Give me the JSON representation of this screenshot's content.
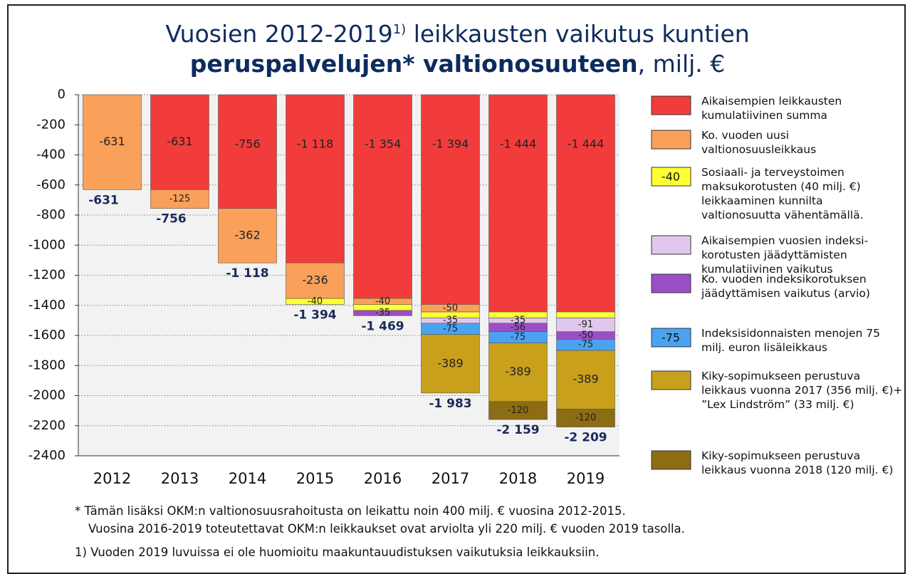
{
  "chart_data": {
    "type": "bar",
    "stacked": true,
    "title": {
      "line1": "Vuosien 2012-2019",
      "superscript": "1)",
      "line1_rest": " leikkausten vaikutus kuntien",
      "line2_bold": "peruspalvelujen* valtionosuuteen",
      "line2_rest": ", milj. €"
    },
    "categories": [
      "2012",
      "2013",
      "2014",
      "2015",
      "2016",
      "2017",
      "2018",
      "2019"
    ],
    "ylim": [
      -2400,
      0
    ],
    "yticks": [
      0,
      -200,
      -400,
      -600,
      -800,
      -1000,
      -1200,
      -1400,
      -1600,
      -1800,
      -2000,
      -2200,
      -2400
    ],
    "grid": true,
    "series": [
      {
        "name": "Aikaisempien leikkausten kumulatiivinen summa",
        "color": "#f23c3c",
        "values": [
          null,
          -631,
          -756,
          -1118,
          -1354,
          -1394,
          -1444,
          -1444
        ],
        "value_labels": [
          null,
          "-631",
          "-756",
          "-1 118",
          "-1 354",
          "-1 394",
          "-1 444",
          "-1 444"
        ]
      },
      {
        "name": "Ko. vuoden uusi valtionosuusleikkaus",
        "color": "#f9a05a",
        "values": [
          -631,
          -125,
          -362,
          -236,
          -40,
          -50,
          null,
          null
        ],
        "value_labels": [
          "-631",
          "-125",
          "-362",
          "-236",
          "-40",
          "-50",
          null,
          null
        ]
      },
      {
        "name": "Sosiaali- ja terveystoimen maksukorotusten (40 milj. €) leikkaaminen kunnilta valtionosuutta vähentämällä.",
        "legend_label": "-40",
        "color": "#ffff33",
        "values": [
          null,
          null,
          null,
          -40,
          -40,
          -40,
          -40,
          -40
        ],
        "value_labels": [
          null,
          null,
          null,
          "-40",
          null,
          null,
          null,
          null
        ]
      },
      {
        "name": "Aikaisempien vuosien indeksi-korotusten jäädyttämisten kumulatiivinen vaikutus",
        "color": "#e0c8ec",
        "values": [
          null,
          null,
          null,
          null,
          null,
          -35,
          -35,
          -91
        ],
        "value_labels": [
          null,
          null,
          null,
          null,
          null,
          "-35",
          "-35",
          "-91"
        ]
      },
      {
        "name": "Ko. vuoden indeksikorotuksen jäädyttämisen vaikutus (arvio)",
        "color": "#9a4fc7",
        "values": [
          null,
          null,
          null,
          null,
          -35,
          null,
          -56,
          -50
        ],
        "value_labels": [
          null,
          null,
          null,
          null,
          "-35",
          null,
          "-56",
          "-50"
        ]
      },
      {
        "name": "Indeksisidonnaisten menojen 75 milj. euron lisäleikkaus",
        "legend_label": "-75",
        "color": "#4aa3f0",
        "values": [
          null,
          null,
          null,
          null,
          null,
          -75,
          -75,
          -75
        ],
        "value_labels": [
          null,
          null,
          null,
          null,
          null,
          "-75",
          "-75",
          "-75"
        ]
      },
      {
        "name": "Kiky-sopimukseen perustuva leikkaus vuonna 2017 (356 milj. €)+ ”Lex Lindström” (33 milj. €)",
        "color": "#c9a01c",
        "values": [
          null,
          null,
          null,
          null,
          null,
          -389,
          -389,
          -389
        ],
        "value_labels": [
          null,
          null,
          null,
          null,
          null,
          "-389",
          "-389",
          "-389"
        ]
      },
      {
        "name": "Kiky-sopimukseen perustuva leikkaus vuonna 2018 (120 milj. €)",
        "color": "#8c6d14",
        "values": [
          null,
          null,
          null,
          null,
          null,
          null,
          -120,
          -120
        ],
        "value_labels": [
          null,
          null,
          null,
          null,
          null,
          null,
          "-120",
          "-120"
        ]
      }
    ],
    "totals": [
      -631,
      -756,
      -1118,
      -1394,
      -1469,
      -1983,
      -2159,
      -2209
    ],
    "total_labels": [
      "-631",
      "-756",
      "-1 118",
      "-1 394",
      "-1 469",
      "-1 983",
      "-2 159",
      "-2 209"
    ],
    "footnotes": [
      "* Tämän lisäksi OKM:n valtionosuusrahoitusta on leikattu noin 400 milj. € vuosina 2012-2015.",
      "Vuosina 2016-2019 toteutettavat OKM:n leikkaukset ovat arviolta yli 220 milj. € vuoden 2019 tasolla.",
      "1) Vuoden 2019 luvuissa ei ole huomioitu maakuntauudistuksen vaikutuksia leikkauksiin."
    ]
  }
}
